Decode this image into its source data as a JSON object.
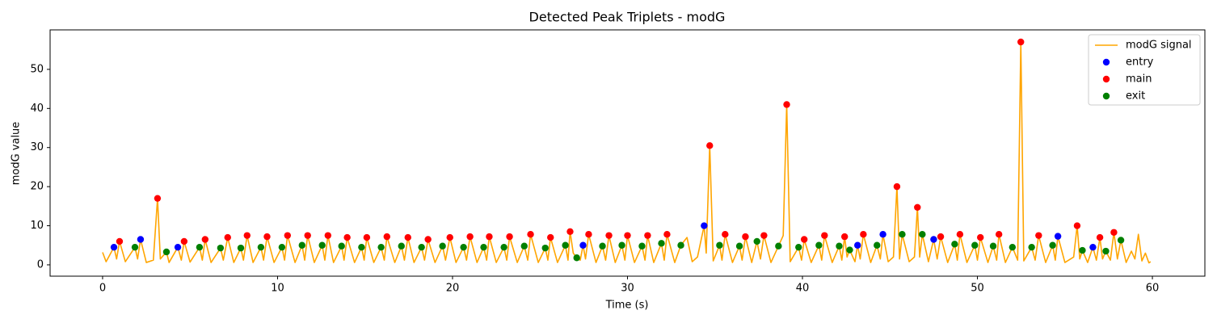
{
  "chart_data": {
    "type": "line",
    "title": "Detected Peak Triplets - modG",
    "x_label": "Time (s)",
    "y_label": "modG value",
    "xlim": [
      -3,
      63
    ],
    "ylim": [
      -2.9,
      60.1
    ],
    "xticks": [
      0,
      10,
      20,
      30,
      40,
      50,
      60
    ],
    "yticks": [
      0,
      10,
      20,
      30,
      40,
      50
    ],
    "legend": "upper right",
    "series": [
      {
        "name": "modG signal",
        "type": "line",
        "color": "#ffa500",
        "x": [
          0,
          0.2,
          0.65,
          0.8,
          0.97,
          1.3,
          1.85,
          2.0,
          2.17,
          2.5,
          2.9,
          3.14,
          3.3,
          3.65,
          3.8,
          4.3,
          4.5,
          4.66,
          5.0,
          5.54,
          5.7,
          5.86,
          6.2,
          6.74,
          6.9,
          7.15,
          7.5,
          7.9,
          8.05,
          8.26,
          8.6,
          9.05,
          9.2,
          9.4,
          9.8,
          10.25,
          10.4,
          10.57,
          11.0,
          11.4,
          11.55,
          11.72,
          12.1,
          12.55,
          12.7,
          12.88,
          13.2,
          13.66,
          13.8,
          13.98,
          14.4,
          14.8,
          14.95,
          15.1,
          15.5,
          15.92,
          16.1,
          16.25,
          16.7,
          17.08,
          17.25,
          17.45,
          17.8,
          18.23,
          18.4,
          18.6,
          19.0,
          19.43,
          19.6,
          19.85,
          20.2,
          20.63,
          20.8,
          21.0,
          21.4,
          21.78,
          21.95,
          22.1,
          22.5,
          22.94,
          23.1,
          23.26,
          23.7,
          24.1,
          24.3,
          24.46,
          24.9,
          25.3,
          25.45,
          25.6,
          26.0,
          26.45,
          26.6,
          26.72,
          26.9,
          27.1,
          27.3,
          27.46,
          27.6,
          27.78,
          28.2,
          28.57,
          28.75,
          28.94,
          29.3,
          29.68,
          29.85,
          30.0,
          30.4,
          30.83,
          31.0,
          31.15,
          31.5,
          31.94,
          32.1,
          32.26,
          32.7,
          33.05,
          33.4,
          33.7,
          34.0,
          34.38,
          34.5,
          34.7,
          34.9,
          35.26,
          35.4,
          35.58,
          36.0,
          36.4,
          36.55,
          36.74,
          37.1,
          37.4,
          37.6,
          37.8,
          38.2,
          38.63,
          38.9,
          39.1,
          39.3,
          39.78,
          39.95,
          40.1,
          40.5,
          40.94,
          41.1,
          41.26,
          41.7,
          42.1,
          42.25,
          42.41,
          42.55,
          42.7,
          43.0,
          43.15,
          43.3,
          43.48,
          43.9,
          44.26,
          44.45,
          44.6,
          44.9,
          45.2,
          45.4,
          45.55,
          45.7,
          46.1,
          46.4,
          46.57,
          46.7,
          46.85,
          47.2,
          47.5,
          47.7,
          47.9,
          48.3,
          48.7,
          48.85,
          49.0,
          49.4,
          49.85,
          50.0,
          50.17,
          50.6,
          50.9,
          51.1,
          51.23,
          51.6,
          52.0,
          52.3,
          52.48,
          52.65,
          53.1,
          53.3,
          53.5,
          53.9,
          54.3,
          54.45,
          54.6,
          55.0,
          55.5,
          55.7,
          55.85,
          56.0,
          56.3,
          56.6,
          56.8,
          57.0,
          57.15,
          57.34,
          57.6,
          57.8,
          58.0,
          58.2,
          58.5,
          58.8,
          59.0,
          59.2,
          59.4,
          59.6,
          59.8,
          59.9
        ],
        "values": [
          3.2,
          0.8,
          4.5,
          1.5,
          6,
          0.8,
          4.5,
          1.5,
          6.5,
          0.6,
          1.2,
          17,
          1.5,
          3.3,
          0.6,
          4.5,
          1.2,
          6,
          0.7,
          4.5,
          1.2,
          6.5,
          0.6,
          4.3,
          1.2,
          7,
          0.6,
          4.3,
          1.2,
          7.5,
          0.6,
          4.5,
          1.2,
          7.2,
          0.6,
          4.5,
          1.2,
          7.5,
          0.6,
          5,
          1.2,
          7.5,
          0.6,
          5,
          1.2,
          7.5,
          0.6,
          4.8,
          1.2,
          7,
          0.6,
          4.5,
          1.2,
          7,
          0.6,
          4.5,
          1.2,
          7.2,
          0.6,
          4.8,
          1.2,
          7,
          0.6,
          4.5,
          1.2,
          6.5,
          0.6,
          4.8,
          1.2,
          7,
          0.6,
          4.5,
          1.2,
          7.2,
          0.6,
          4.5,
          1.2,
          7.2,
          0.6,
          4.5,
          1.2,
          7.2,
          0.6,
          4.8,
          1.2,
          7.8,
          0.6,
          4.3,
          1.2,
          7,
          0.6,
          5,
          1.2,
          8.5,
          3,
          1.8,
          1.2,
          5,
          1.5,
          7.8,
          0.6,
          4.8,
          1.2,
          7.5,
          0.6,
          5,
          1.2,
          7.5,
          0.6,
          4.8,
          1.2,
          7.5,
          0.6,
          5.5,
          1.2,
          7.8,
          0.6,
          5,
          7,
          0.8,
          2,
          10,
          3,
          30.5,
          1,
          5,
          1.2,
          7.8,
          0.6,
          4.8,
          1.2,
          7.2,
          0.6,
          6,
          1.5,
          7.5,
          0.6,
          4.8,
          7.5,
          41,
          0.8,
          4.5,
          1.2,
          6.5,
          0.6,
          5,
          1.2,
          7.5,
          0.6,
          4.8,
          1.2,
          7.2,
          2,
          3.8,
          0.8,
          5,
          1.5,
          7.8,
          0.6,
          5,
          1.5,
          7.8,
          0.8,
          2,
          20,
          1.5,
          7.8,
          0.8,
          2,
          14.7,
          2,
          7.8,
          0.8,
          6.5,
          1.5,
          7.2,
          0.6,
          5.3,
          1.2,
          7.8,
          0.6,
          5,
          1.2,
          7,
          0.6,
          4.8,
          1.2,
          7.8,
          0.6,
          4.5,
          1.2,
          57,
          1,
          4.5,
          1.2,
          7.5,
          0.6,
          5,
          1.2,
          7.3,
          0.6,
          2,
          10,
          1.5,
          3.7,
          0.6,
          4.5,
          1.2,
          7,
          1.5,
          3.5,
          1.2,
          8.3,
          1.5,
          6.3,
          0.6,
          3.5,
          1.5,
          7.8,
          1,
          3,
          0.5,
          0.8
        ]
      },
      {
        "name": "entry",
        "type": "scatter",
        "color": "#0000ff",
        "x": [
          0.65,
          2.17,
          4.3,
          27.46,
          34.38,
          43.15,
          44.6,
          47.5,
          54.6,
          56.6
        ],
        "values": [
          4.5,
          6.5,
          4.5,
          5,
          10,
          5,
          7.8,
          6.5,
          7.3,
          4.5
        ]
      },
      {
        "name": "main",
        "type": "scatter",
        "color": "#ff0000",
        "x": [
          0.97,
          3.14,
          4.66,
          5.86,
          7.15,
          8.26,
          9.4,
          10.57,
          11.72,
          12.88,
          13.98,
          15.1,
          16.25,
          17.45,
          18.6,
          19.85,
          21.0,
          22.1,
          23.26,
          24.46,
          25.6,
          26.72,
          27.78,
          28.94,
          30.0,
          31.15,
          32.26,
          34.7,
          35.58,
          36.74,
          37.8,
          39.1,
          40.1,
          41.26,
          42.41,
          43.48,
          45.4,
          46.57,
          47.9,
          49.0,
          50.17,
          51.23,
          52.48,
          53.5,
          55.7,
          57.0,
          57.8
        ],
        "values": [
          6,
          17,
          6,
          6.5,
          7,
          7.5,
          7.2,
          7.5,
          7.5,
          7.5,
          7,
          7,
          7.2,
          7,
          6.5,
          7,
          7.2,
          7.2,
          7.2,
          7.8,
          7,
          8.5,
          7.8,
          7.5,
          7.5,
          7.5,
          7.8,
          30.5,
          7.8,
          7.2,
          7.5,
          41,
          6.5,
          7.5,
          7.2,
          7.8,
          20,
          14.7,
          7.2,
          7.8,
          7,
          7.8,
          57,
          7.5,
          10,
          7,
          8.3
        ]
      },
      {
        "name": "exit",
        "type": "scatter",
        "color": "#008000",
        "x": [
          1.85,
          3.65,
          5.54,
          6.74,
          7.9,
          9.05,
          10.25,
          11.4,
          12.55,
          13.66,
          14.8,
          15.92,
          17.08,
          18.23,
          19.43,
          20.63,
          21.78,
          22.94,
          24.1,
          25.3,
          26.45,
          27.1,
          28.57,
          29.68,
          30.83,
          31.94,
          33.05,
          35.26,
          36.4,
          37.4,
          38.63,
          39.78,
          40.94,
          42.1,
          42.7,
          44.26,
          45.7,
          46.85,
          48.7,
          49.85,
          50.9,
          52.0,
          53.1,
          54.3,
          56.0,
          57.34,
          58.2
        ],
        "values": [
          4.5,
          3.3,
          4.5,
          4.3,
          4.3,
          4.5,
          4.5,
          5,
          5,
          4.8,
          4.5,
          4.5,
          4.8,
          4.5,
          4.8,
          4.5,
          4.5,
          4.5,
          4.8,
          4.3,
          5,
          1.8,
          4.8,
          5,
          4.8,
          5.5,
          5,
          5,
          4.8,
          6,
          4.8,
          4.5,
          5,
          4.8,
          3.8,
          5,
          7.8,
          7.8,
          5.3,
          5,
          4.8,
          4.5,
          4.5,
          5,
          3.7,
          3.5,
          6.3
        ]
      }
    ]
  }
}
